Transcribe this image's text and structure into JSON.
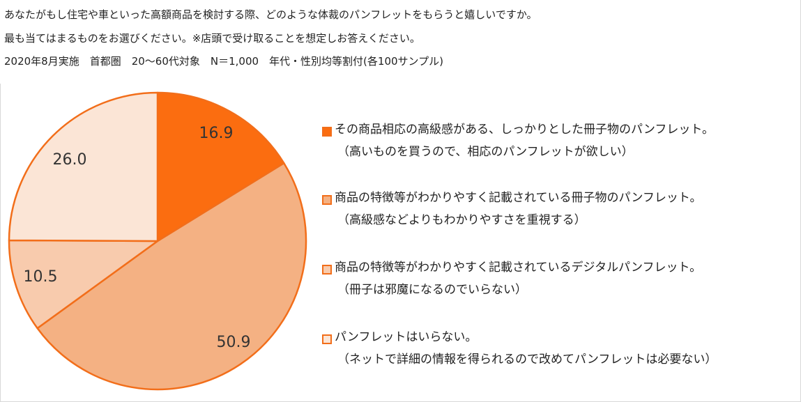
{
  "header": {
    "question_line1": "あなたがもし住宅や車といった高額商品を検討する際、どのような体裁のパンフレットをもらうと嬉しいですか。",
    "question_line2": "最も当てはまるものをお選びください。※店頭で受け取ることを想定しお答えください。",
    "survey_info": "2020年8月実施　首都圏　20〜60代対象　N＝1,000　年代・性別均等割付(各100サンプル)"
  },
  "chart_data": {
    "type": "pie",
    "title": "",
    "unit": "%",
    "start_angle_deg": 0,
    "direction": "clockwise",
    "slice_border_color": "#f26e1a",
    "slices": [
      {
        "value": 16.9,
        "label": "16.9",
        "color": "#fb6d10",
        "legend_line1": "その商品相応の高級感がある、しっかりとした冊子物のパンフレット。",
        "legend_line2": "（高いものを買うので、相応のパンフレットが欲しい）"
      },
      {
        "value": 50.9,
        "label": "50.9",
        "color": "#f4b183",
        "legend_line1": "商品の特徴等がわかりやすく記載されている冊子物のパンフレット。",
        "legend_line2": "（高級感などよりもわかりやすさを重視する）"
      },
      {
        "value": 10.5,
        "label": "10.5",
        "color": "#f8cbad",
        "legend_line1": "商品の特徴等がわかりやすく記載されているデジタルパンフレット。",
        "legend_line2": "（冊子は邪魔になるのでいらない）"
      },
      {
        "value": 26.0,
        "label": "26.0",
        "color": "#fbe5d6",
        "legend_line1": "パンフレットはいらない。",
        "legend_line2": "（ネットで詳細の情報を得られるので改めてパンフレットは必要ない）"
      }
    ],
    "legend_position": "right"
  }
}
